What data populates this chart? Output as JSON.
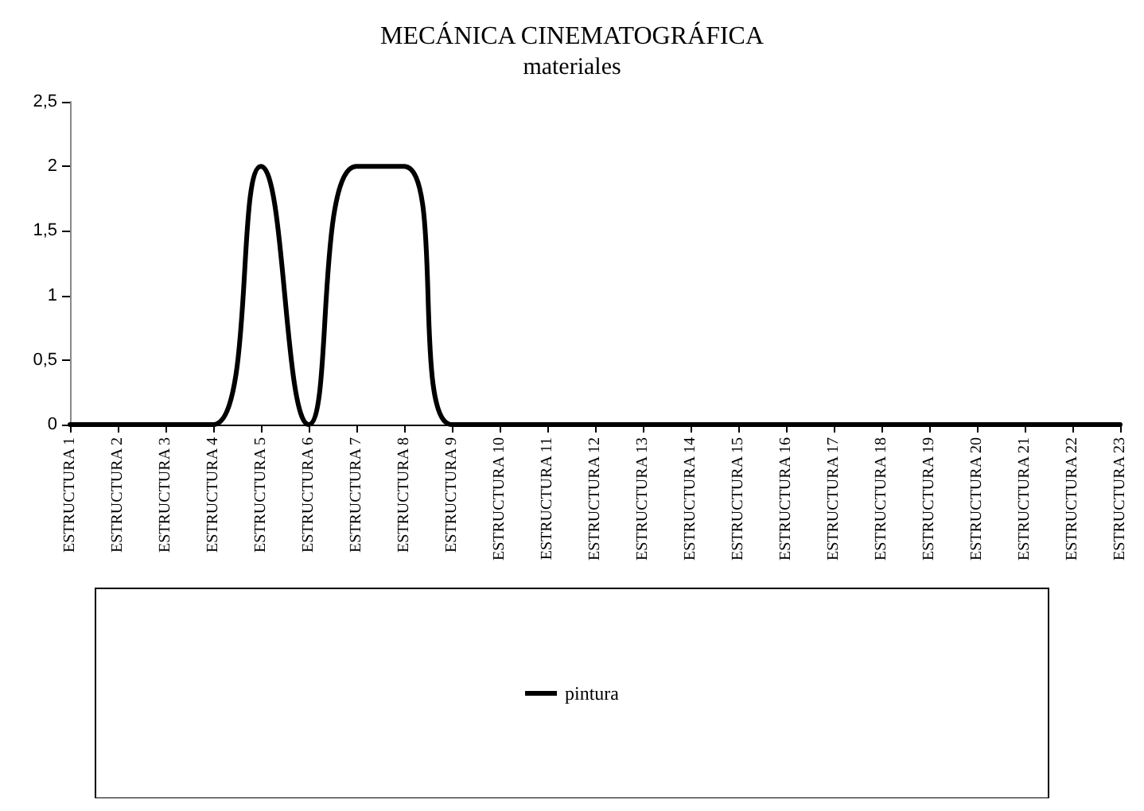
{
  "chart_data": {
    "type": "line",
    "title": "MECÁNICA CINEMATOGRÁFICA",
    "subtitle": "materiales",
    "categories": [
      "ESTRUCTURA 1",
      "ESTRUCTURA 2",
      "ESTRUCTURA 3",
      "ESTRUCTURA 4",
      "ESTRUCTURA 5",
      "ESTRUCTURA 6",
      "ESTRUCTURA 7",
      "ESTRUCTURA 8",
      "ESTRUCTURA 9",
      "ESTRUCTURA 10",
      "ESTRUCTURA 11",
      "ESTRUCTURA 12",
      "ESTRUCTURA 13",
      "ESTRUCTURA 14",
      "ESTRUCTURA 15",
      "ESTRUCTURA 16",
      "ESTRUCTURA 17",
      "ESTRUCTURA 18",
      "ESTRUCTURA 19",
      "ESTRUCTURA 20",
      "ESTRUCTURA 21",
      "ESTRUCTURA 22",
      "ESTRUCTURA 23"
    ],
    "series": [
      {
        "name": "pintura",
        "color": "#000000",
        "values": [
          0,
          0,
          0,
          0,
          2,
          0,
          2,
          2,
          0,
          0,
          0,
          0,
          0,
          0,
          0,
          0,
          0,
          0,
          0,
          0,
          0,
          0,
          0
        ]
      }
    ],
    "ylim": [
      0,
      2.5
    ],
    "yticks": [
      {
        "value": 0,
        "label": "0"
      },
      {
        "value": 0.5,
        "label": "0,5"
      },
      {
        "value": 1,
        "label": "1"
      },
      {
        "value": 1.5,
        "label": "1,5"
      },
      {
        "value": 2,
        "label": "2"
      },
      {
        "value": 2.5,
        "label": "2,5"
      }
    ],
    "grid": false,
    "legend": "bottom",
    "marker": "none",
    "line_style": "solid"
  }
}
